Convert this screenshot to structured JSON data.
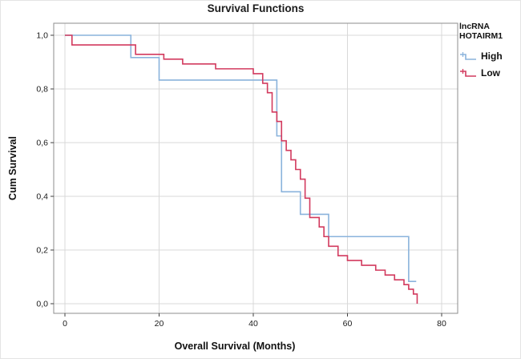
{
  "chart_data": {
    "type": "line",
    "subtype": "kaplan-meier-step",
    "title": "Survival Functions",
    "xlabel": "Overall Survival (Months)",
    "ylabel": "Cum Survival",
    "xlim": [
      -2.4,
      83.4
    ],
    "ylim": [
      -0.04,
      1.04
    ],
    "grid": true,
    "xticks": {
      "values": [
        0,
        20,
        40,
        60,
        80
      ],
      "labels": [
        "0",
        "20",
        "40",
        "60",
        "80"
      ]
    },
    "yticks": {
      "values": [
        0.0,
        0.2,
        0.4,
        0.6,
        0.8,
        1.0
      ],
      "labels": [
        "0,0",
        "0,2",
        "0,4",
        "0,6",
        "0,8",
        "1,0"
      ]
    },
    "colors": {
      "grid": "#d9d9d9",
      "plot_border": "#8c8c8c",
      "tick": "#404040",
      "text": "#1a1a1a"
    },
    "legend": {
      "position": "top-right",
      "title_line1": "lncRNA",
      "title_line2": "HOTAIRM1",
      "entries": [
        {
          "label": "High",
          "color": "#8AB3DC"
        },
        {
          "label": "Low",
          "color": "#D23A5E"
        }
      ]
    },
    "series": [
      {
        "name": "High",
        "color": "#8AB3DC",
        "points": [
          [
            0,
            1.0
          ],
          [
            14,
            0.917
          ],
          [
            20,
            0.833
          ],
          [
            45,
            0.625
          ],
          [
            46,
            0.417
          ],
          [
            50,
            0.333
          ],
          [
            56,
            0.25
          ],
          [
            73,
            0.083
          ],
          [
            74.6,
            0.083
          ]
        ]
      },
      {
        "name": "Low",
        "color": "#D23A5E",
        "points": [
          [
            0,
            1.0
          ],
          [
            1.5,
            0.964
          ],
          [
            15,
            0.929
          ],
          [
            21,
            0.911
          ],
          [
            25,
            0.893
          ],
          [
            32,
            0.875
          ],
          [
            40,
            0.857
          ],
          [
            42,
            0.821
          ],
          [
            43,
            0.786
          ],
          [
            44,
            0.714
          ],
          [
            45,
            0.679
          ],
          [
            46,
            0.607
          ],
          [
            47,
            0.571
          ],
          [
            48,
            0.536
          ],
          [
            49,
            0.5
          ],
          [
            50,
            0.464
          ],
          [
            51,
            0.393
          ],
          [
            52,
            0.321
          ],
          [
            54,
            0.286
          ],
          [
            55,
            0.25
          ],
          [
            56,
            0.214
          ],
          [
            58,
            0.179
          ],
          [
            60,
            0.161
          ],
          [
            63,
            0.143
          ],
          [
            66,
            0.125
          ],
          [
            68,
            0.107
          ],
          [
            70,
            0.089
          ],
          [
            72,
            0.071
          ],
          [
            73,
            0.054
          ],
          [
            74,
            0.036
          ],
          [
            74.8,
            0.0
          ]
        ]
      }
    ]
  }
}
